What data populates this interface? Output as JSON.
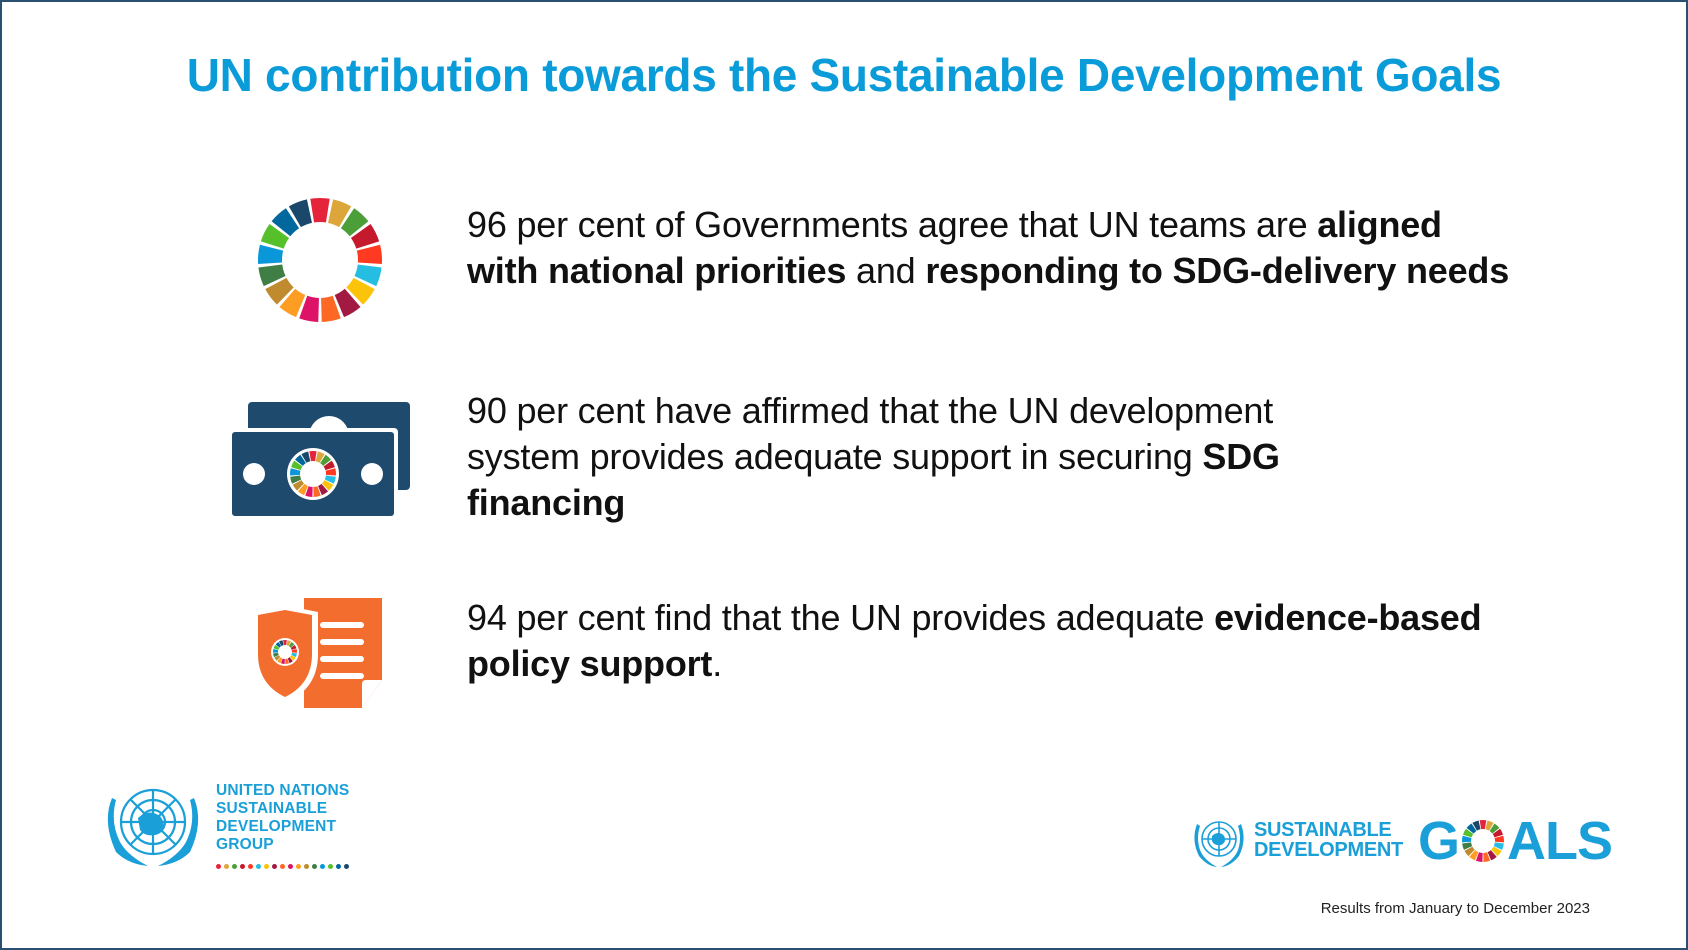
{
  "title": "UN contribution towards the Sustainable Development Goals",
  "items": [
    {
      "icon": "sdg-wheel-icon",
      "segments": [
        {
          "text": "96 per cent of Governments agree that UN teams are ",
          "bold": false
        },
        {
          "text": "aligned with national priorities",
          "bold": true
        },
        {
          "text": " and ",
          "bold": false
        },
        {
          "text": "responding to SDG-delivery needs",
          "bold": true
        }
      ],
      "lines": [
        [
          "96 per cent of Governments agree that UN teams are ",
          "aligned"
        ],
        [
          "with national priorities",
          " and ",
          "responding to SDG-delivery needs"
        ]
      ]
    },
    {
      "icon": "money-bills-icon",
      "lines": [
        [
          "90 per cent have affirmed that the UN development"
        ],
        [
          "system provides adequate support in securing ",
          "SDG"
        ],
        [
          "financing"
        ]
      ]
    },
    {
      "icon": "policy-document-shield-icon",
      "lines": [
        [
          "94 per cent find that the UN provides adequate ",
          "evidence-based"
        ],
        [
          "policy support",
          "."
        ]
      ]
    }
  ],
  "logos": {
    "unsdg": {
      "line1": "UNITED NATIONS",
      "line2": "SUSTAINABLE",
      "line3": "DEVELOPMENT",
      "line4": "GROUP"
    },
    "sdg": {
      "line1": "SUSTAINABLE",
      "line2": "DEVELOPMENT",
      "goals_g": "G",
      "goals_rest": "ALS"
    }
  },
  "footer": {
    "results": "Results from January to December 2023"
  },
  "colors": {
    "title": "#0a9bd9",
    "border": "#2b4f70",
    "money_icon": "#1d4a6d",
    "doc_icon": "#f36d2f",
    "logo_blue": "#1a9fd8",
    "sdg_wheel": [
      "#e5243b",
      "#dda63a",
      "#4c9f38",
      "#c5192d",
      "#ff3a21",
      "#26bde2",
      "#fcc30b",
      "#a21942",
      "#fd6925",
      "#dd1367",
      "#fd9d24",
      "#bf8b2e",
      "#3f7e44",
      "#0a97d9",
      "#56c02b",
      "#00689d",
      "#19486a"
    ]
  }
}
